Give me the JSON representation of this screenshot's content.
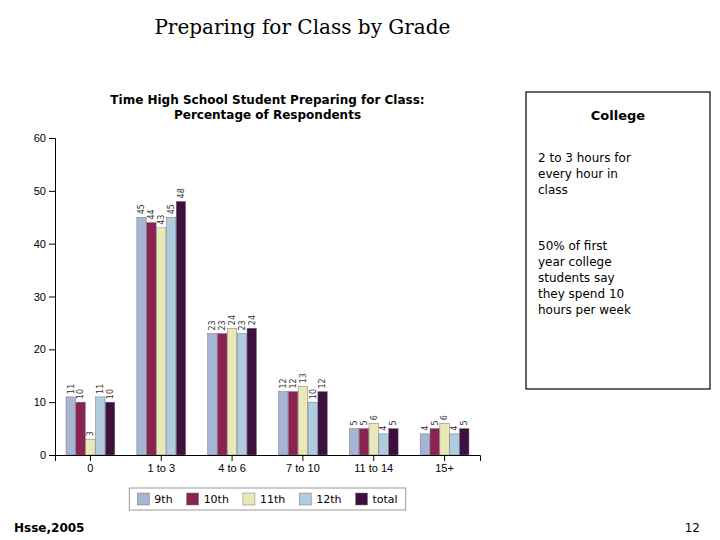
{
  "chart_data": {
    "type": "bar",
    "title": "Preparing for Class by Grade",
    "subtitle": "Time High School Student Preparing for Class:\nPercentage of Respondents",
    "categories": [
      "0",
      "1 to 3",
      "4 to 6",
      "7 to 10",
      "11 to 14",
      "15+"
    ],
    "series": [
      {
        "name": "9th",
        "color": "#a8b4d4",
        "values": [
          11,
          45,
          23,
          12,
          5,
          4
        ]
      },
      {
        "name": "10th",
        "color": "#8b2252",
        "values": [
          10,
          44,
          23,
          12,
          5,
          5
        ]
      },
      {
        "name": "11th",
        "color": "#e8e8b8",
        "values": [
          3,
          43,
          24,
          13,
          6,
          6
        ]
      },
      {
        "name": "12th",
        "color": "#b0cce0",
        "values": [
          11,
          45,
          23,
          10,
          4,
          4
        ]
      },
      {
        "name": "total",
        "color": "#3d1040",
        "values": [
          10,
          48,
          24,
          12,
          5,
          5
        ]
      }
    ],
    "ylim": [
      0,
      60
    ],
    "yticks": [
      0,
      10,
      20,
      30,
      40,
      50,
      60
    ],
    "grid": false,
    "legend": "bottom",
    "data_labels": true,
    "annotations": [
      "Hsse,2005",
      "12",
      "College",
      "2 to 3 hours for\nevery hour in\nclass",
      "50% of first\nyear college\nstudents say\nthey spend 10\nhours per week"
    ]
  }
}
